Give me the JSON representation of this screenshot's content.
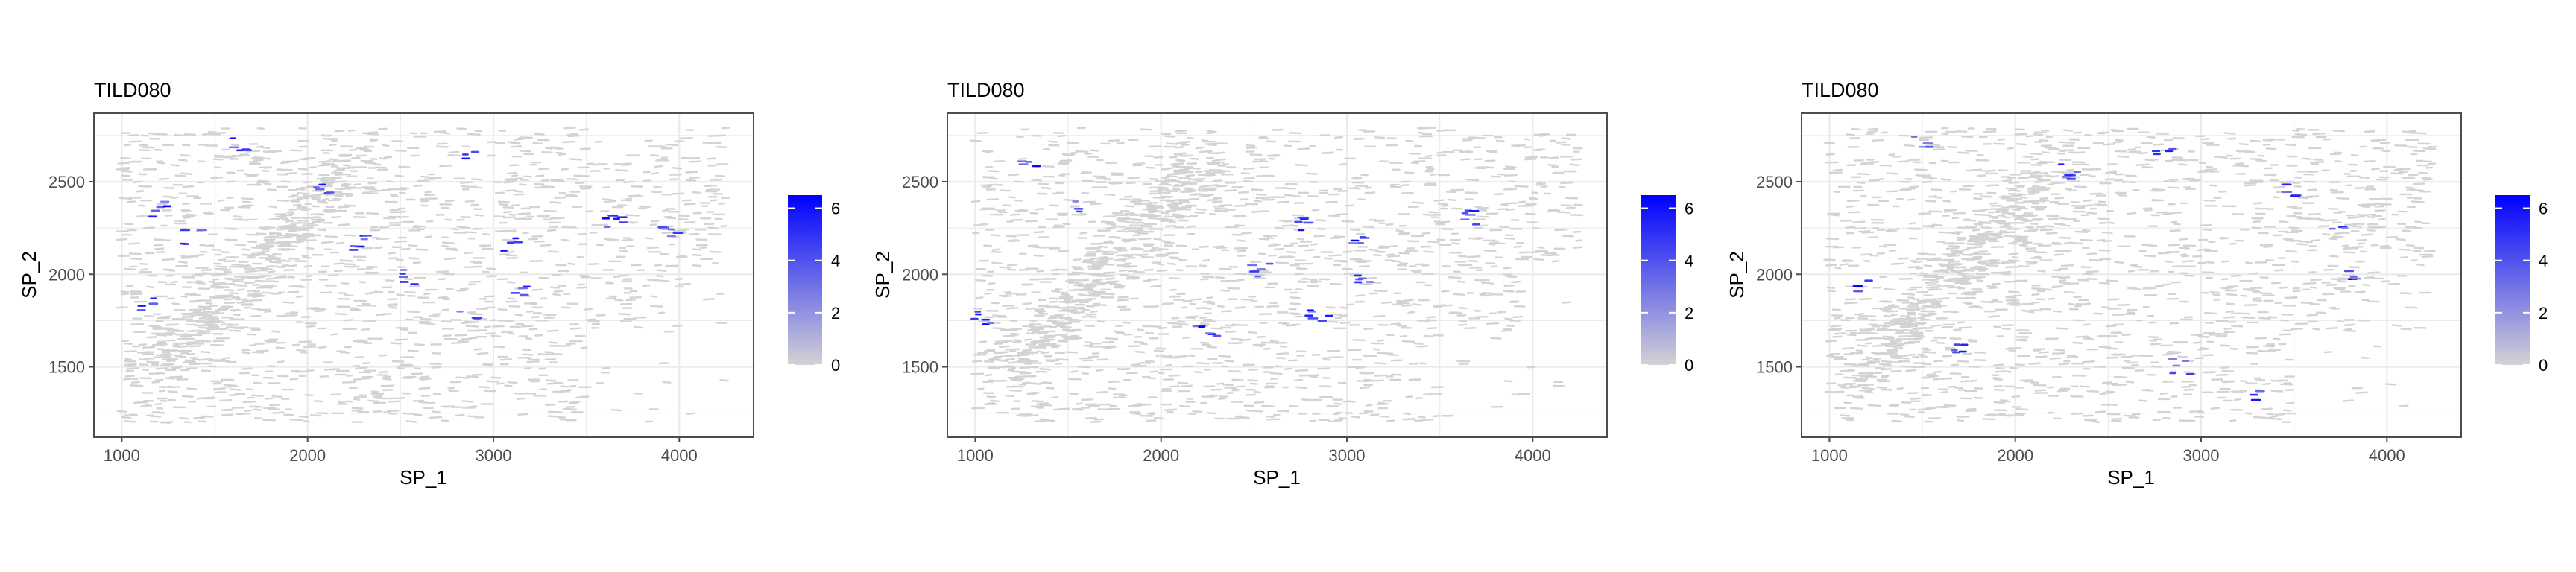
{
  "colors": {
    "background": "#ffffff",
    "panel_border": "#4d4d4d",
    "grid": "#ebebeb",
    "low": "#d3d3d3",
    "high": "#0000ff",
    "text": "#000000",
    "tick_text": "#4d4d4d"
  },
  "chart_data": [
    {
      "type": "scatter",
      "title": "TILD080",
      "xlabel": "SP_1",
      "ylabel": "SP_2",
      "xlim": [
        850,
        4400
      ],
      "ylim": [
        1120,
        2870
      ],
      "xticks": [
        1000,
        2000,
        3000,
        4000
      ],
      "yticks": [
        1500,
        2000,
        2500
      ],
      "grid": true,
      "legend": {
        "position": "right",
        "type": "colorbar",
        "range": [
          0,
          6.5
        ],
        "ticks": [
          0,
          2,
          4,
          6
        ]
      },
      "clusters": [
        [
          1650,
          2700
        ],
        [
          2100,
          2450
        ],
        [
          2550,
          1980
        ],
        [
          2900,
          2630
        ],
        [
          2870,
          1780
        ],
        [
          3110,
          2150
        ],
        [
          3150,
          1920
        ],
        [
          3650,
          2280
        ],
        [
          3950,
          2240
        ],
        [
          1120,
          1840
        ],
        [
          1200,
          2350
        ],
        [
          1380,
          2200
        ],
        [
          2270,
          2170
        ]
      ]
    },
    {
      "type": "scatter",
      "title": "TILD080",
      "xlabel": "SP_1",
      "ylabel": "SP_2",
      "xlim": [
        850,
        4400
      ],
      "ylim": [
        1120,
        2870
      ],
      "xticks": [
        1000,
        2000,
        3000,
        4000
      ],
      "yticks": [
        1500,
        2000,
        2500
      ],
      "grid": true,
      "legend": {
        "position": "right",
        "type": "colorbar",
        "range": [
          0,
          6.5
        ],
        "ticks": [
          0,
          2,
          4,
          6
        ]
      },
      "clusters": [
        [
          1300,
          2620
        ],
        [
          1550,
          2350
        ],
        [
          2530,
          2020
        ],
        [
          3080,
          2200
        ],
        [
          3100,
          1950
        ],
        [
          3680,
          2300
        ],
        [
          2850,
          1790
        ],
        [
          1050,
          1770
        ],
        [
          2250,
          1700
        ],
        [
          2750,
          2280
        ]
      ]
    },
    {
      "type": "scatter",
      "title": "TILD080",
      "xlabel": "SP_1",
      "ylabel": "SP_2",
      "xlim": [
        850,
        4400
      ],
      "ylim": [
        1120,
        2870
      ],
      "xticks": [
        1000,
        2000,
        3000,
        4000
      ],
      "yticks": [
        1500,
        2000,
        2500
      ],
      "grid": true,
      "legend": {
        "position": "right",
        "type": "colorbar",
        "range": [
          0,
          6.5
        ],
        "ticks": [
          0,
          2,
          4,
          6
        ]
      },
      "clusters": [
        [
          1500,
          2700
        ],
        [
          2300,
          2550
        ],
        [
          2800,
          2650
        ],
        [
          3500,
          2450
        ],
        [
          3750,
          2250
        ],
        [
          1200,
          1950
        ],
        [
          1700,
          1600
        ],
        [
          2900,
          1500
        ],
        [
          3300,
          1350
        ],
        [
          3850,
          2000
        ]
      ]
    }
  ]
}
